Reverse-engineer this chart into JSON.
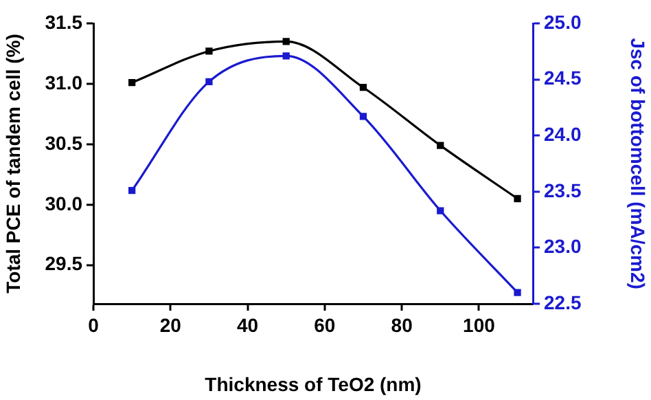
{
  "chart_data": {
    "type": "line",
    "xlabel": "Thickness of TeO2 (nm)",
    "ylabel": "Total PCE of tandem cell (%)",
    "y2label": "Jsc of bottomcell (mA/cm2)",
    "x": [
      10,
      30,
      50,
      70,
      90,
      110
    ],
    "series": [
      {
        "color": "#000000",
        "values": [
          31.01,
          31.27,
          31.35,
          30.97,
          30.49,
          30.05
        ]
      },
      {
        "color": "#1a1ad0",
        "axis": "y2",
        "values": [
          23.51,
          24.48,
          24.71,
          24.17,
          23.33,
          22.6
        ]
      }
    ],
    "xlim": [
      0,
      114
    ],
    "xticks": [
      0,
      20,
      40,
      60,
      80,
      100
    ],
    "ylim": [
      29.18,
      31.5
    ],
    "yticks": [
      {
        "value": 29.5,
        "label": "29.5"
      },
      {
        "value": 30,
        "label": "30.0"
      },
      {
        "value": 30.5,
        "label": "30.5"
      },
      {
        "value": 31,
        "label": "31.0"
      },
      {
        "value": 31.5,
        "label": "31.5"
      }
    ],
    "y2lim": [
      22.5,
      25.0
    ],
    "y2ticks": [
      {
        "value": 22.5,
        "label": "22.5"
      },
      {
        "value": 23,
        "label": "23.0"
      },
      {
        "value": 23.5,
        "label": "23.5"
      },
      {
        "value": 24,
        "label": "24.0"
      },
      {
        "value": 24.5,
        "label": "24.5"
      },
      {
        "value": 25,
        "label": "25.0"
      }
    ],
    "marker": "square",
    "grid": false,
    "legend": false
  }
}
